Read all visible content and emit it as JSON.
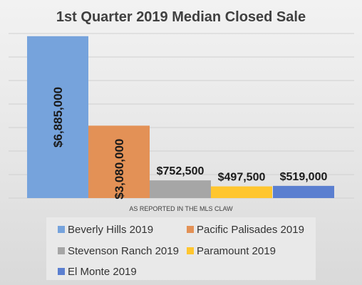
{
  "chart_data": {
    "type": "bar",
    "title": "1st Quarter 2019 Median Closed Sale",
    "xlabel": "AS REPORTED IN THE MLS CLAW",
    "ylabel": "",
    "ylim": [
      0,
      7000000
    ],
    "grid": true,
    "legend_position": "bottom",
    "series": [
      {
        "name": "Beverly Hills 2019",
        "value": 6885000,
        "label": "$6,885,000",
        "color": "#76a3dc"
      },
      {
        "name": "Pacific Palisades 2019",
        "value": 3080000,
        "label": "$3,080,000",
        "color": "#e39156"
      },
      {
        "name": "Stevenson Ranch 2019",
        "value": 752500,
        "label": "$752,500",
        "color": "#a6a6a6"
      },
      {
        "name": "Paramount 2019",
        "value": 497500,
        "label": "$497,500",
        "color": "#ffc62f"
      },
      {
        "name": "El Monte 2019",
        "value": 519000,
        "label": "$519,000",
        "color": "#5b7fd0"
      }
    ]
  }
}
